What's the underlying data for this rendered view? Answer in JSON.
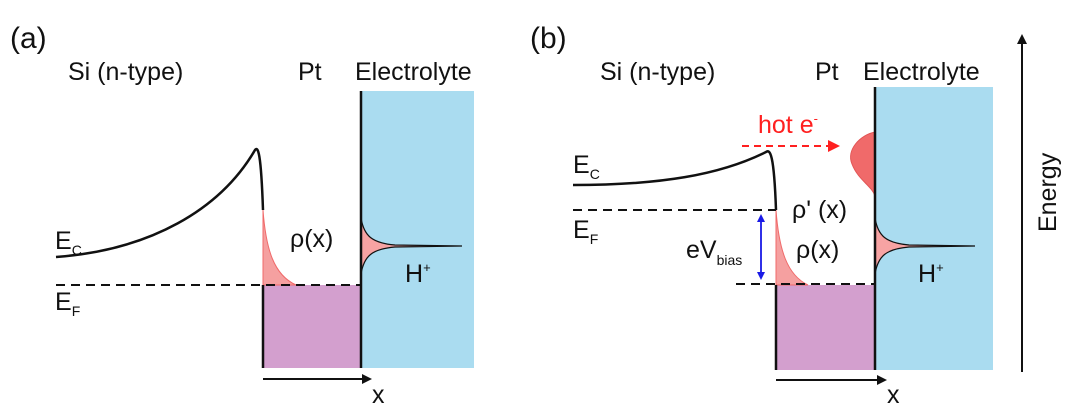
{
  "colors": {
    "electrolyte": "#aadcf0",
    "pt_metal": "#d39fce",
    "density": "#f06a6a",
    "density_light": "#f7a3a3",
    "hot_electron": "#ff2020",
    "bias_arrow": "#1a1ae6",
    "line": "#111111"
  },
  "panels": [
    {
      "label": "(a)",
      "regions": {
        "si": "Si (n-type)",
        "pt": "Pt",
        "electrolyte": "Electrolyte"
      },
      "ec": {
        "main": "E",
        "sub": "C"
      },
      "ef": {
        "main": "E",
        "sub": "F"
      },
      "rho": "ρ(x)",
      "proton": {
        "main": "H",
        "sup": "+"
      },
      "x_axis": "x"
    },
    {
      "label": "(b)",
      "regions": {
        "si": "Si (n-type)",
        "pt": "Pt",
        "electrolyte": "Electrolyte"
      },
      "ec": {
        "main": "E",
        "sub": "C"
      },
      "ef": {
        "main": "E",
        "sub": "F"
      },
      "rho": "ρ(x)",
      "rho_prime": "ρ' (x)",
      "hot": {
        "main": "hot e",
        "sup": "-"
      },
      "bias": {
        "main": "eV",
        "sub": "bias"
      },
      "proton": {
        "main": "H",
        "sup": "+"
      },
      "x_axis": "x"
    }
  ],
  "energy_axis": "Energy"
}
